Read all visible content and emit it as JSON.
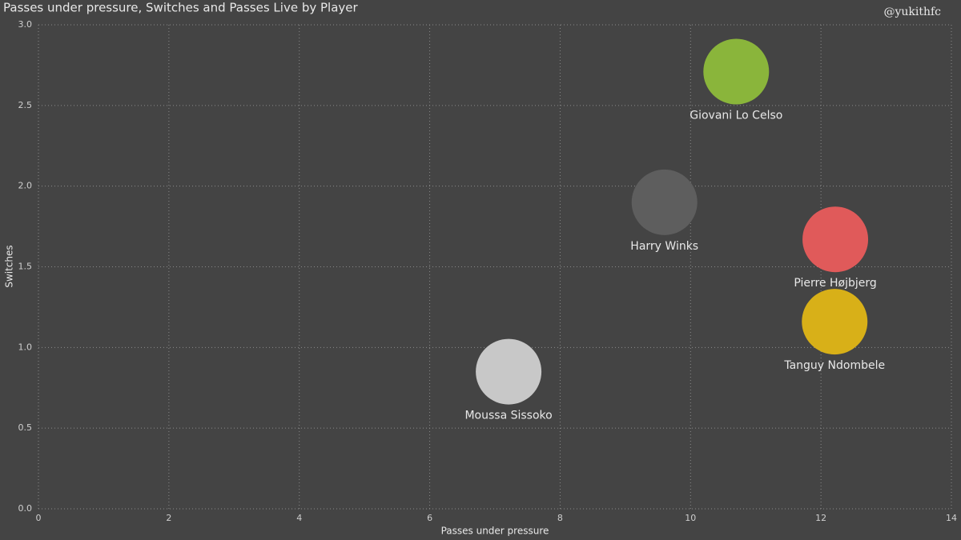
{
  "chart_data": {
    "type": "scatter",
    "title": "Passes under pressure, Switches and Passes Live by Player",
    "watermark": "@yukithfc",
    "x_label": "Passes under pressure",
    "y_label": "Switches",
    "categories": [
      "Giovani Lo Celso",
      "Harry Winks",
      "Pierre Højbjerg",
      "Tanguy Ndombele",
      "Moussa Sissoko"
    ],
    "x": [
      10.7,
      9.6,
      12.22,
      12.21,
      7.21
    ],
    "values": [
      2.71,
      1.9,
      1.67,
      1.16,
      0.85
    ],
    "colors": [
      "#8ab53b",
      "#5e5e5e",
      "#e05a5a",
      "#d8b018",
      "#c8c8c8"
    ],
    "xlim": [
      0,
      14
    ],
    "xticks": [
      0,
      2,
      4,
      6,
      8,
      10,
      12,
      14
    ],
    "ylim": [
      0,
      3
    ],
    "yticks": [
      {
        "value": 0,
        "label": "0.0"
      },
      0.5,
      {
        "value": 1,
        "label": "1.0"
      },
      1.5,
      {
        "value": 2,
        "label": "2.0"
      },
      2.5,
      {
        "value": 3,
        "label": "3.0"
      }
    ],
    "grid": true
  }
}
